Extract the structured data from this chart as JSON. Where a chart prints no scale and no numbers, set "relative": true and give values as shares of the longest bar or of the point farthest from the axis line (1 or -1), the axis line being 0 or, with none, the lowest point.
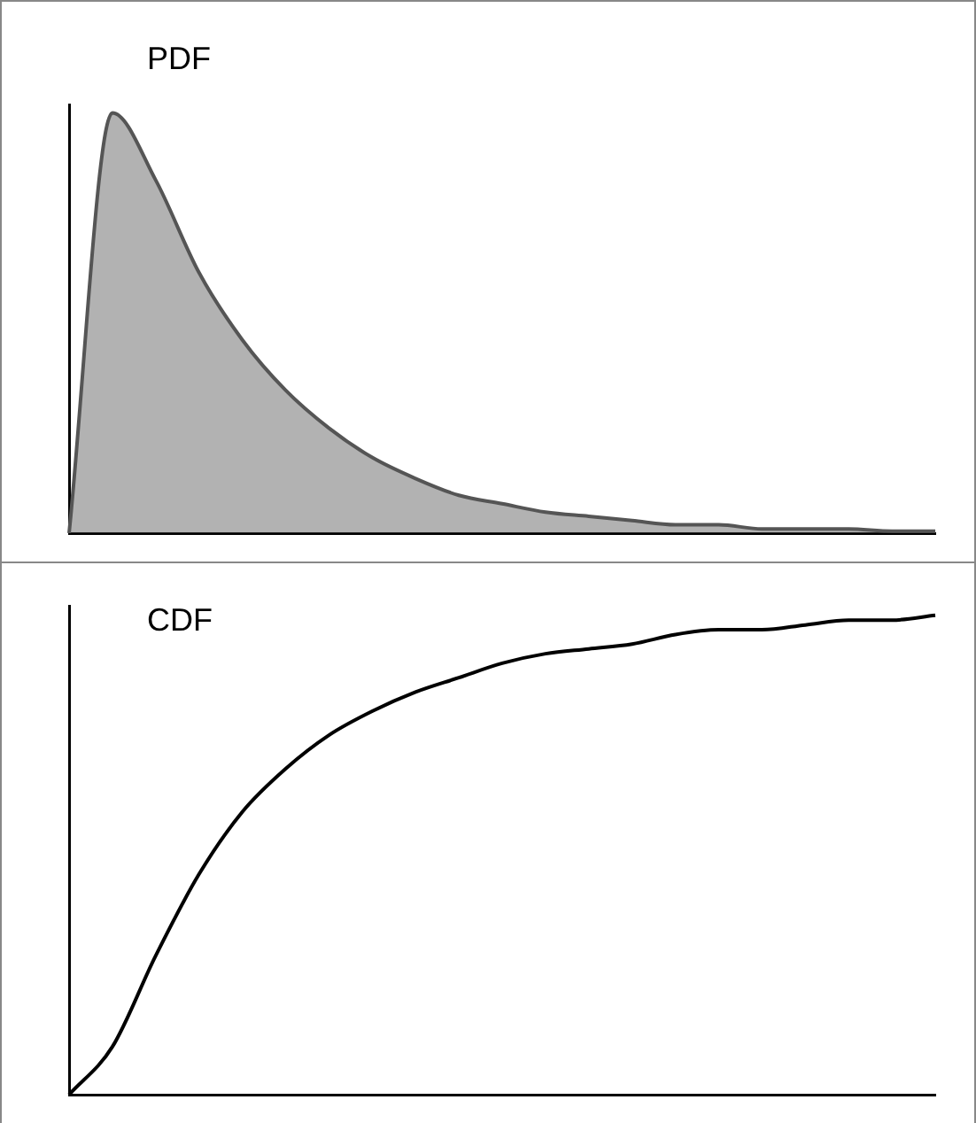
{
  "chart_data": [
    {
      "type": "area",
      "title": "PDF",
      "relative": true,
      "tick_labels": false,
      "grid": false,
      "legend": false,
      "marker": "none",
      "categories": [
        null,
        null,
        null,
        null,
        null,
        null,
        null,
        null,
        null,
        null,
        null,
        null,
        null,
        null,
        null,
        null,
        null,
        null,
        null,
        null,
        null
      ],
      "series": [
        {
          "color": "#555555",
          "values": [
            0,
            1,
            0.84,
            0.62,
            0.46,
            0.34,
            0.25,
            0.18,
            0.13,
            0.09,
            0.07,
            0.05,
            0.04,
            0.03,
            0.02,
            0.02,
            0.01,
            0.01,
            0.01,
            0.005,
            0.005
          ]
        }
      ]
    },
    {
      "type": "line",
      "title": "CDF",
      "relative": true,
      "tick_labels": false,
      "grid": false,
      "legend": false,
      "marker": "none",
      "categories": [
        null,
        null,
        null,
        null,
        null,
        null,
        null,
        null,
        null,
        null,
        null,
        null,
        null,
        null,
        null,
        null,
        null,
        null,
        null,
        null,
        null
      ],
      "series": [
        {
          "color": "#000000",
          "values": [
            0,
            0.1,
            0.29,
            0.46,
            0.59,
            0.68,
            0.75,
            0.8,
            0.84,
            0.87,
            0.9,
            0.92,
            0.93,
            0.94,
            0.96,
            0.97,
            0.97,
            0.98,
            0.99,
            0.99,
            1
          ]
        }
      ]
    }
  ]
}
